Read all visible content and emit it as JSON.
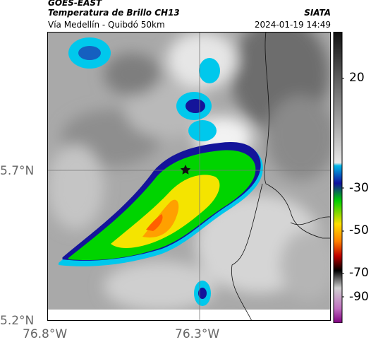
{
  "header": {
    "satellite": "GOES-EAST",
    "product": "Temperatura de Brillo CH13",
    "region": "Vía Medellín - Quibdó 50km",
    "institution": "SIATA",
    "datetime": "2024-01-19 14:49"
  },
  "map": {
    "lat_ticks": [
      "5.7°N",
      "5.2°N"
    ],
    "lon_ticks": [
      "76.8°W",
      "76.3°W"
    ],
    "marker": "star-marker"
  },
  "colorbar": {
    "ticks": [
      "20",
      "-30",
      "-50",
      "-70",
      "-90"
    ],
    "colors": [
      "#111111",
      "#555555",
      "#999999",
      "#dddddd",
      "#00b7e8",
      "#1010a0",
      "#00d000",
      "#ffe000",
      "#ff8000",
      "#c00000",
      "#000000",
      "#c070c0"
    ]
  }
}
